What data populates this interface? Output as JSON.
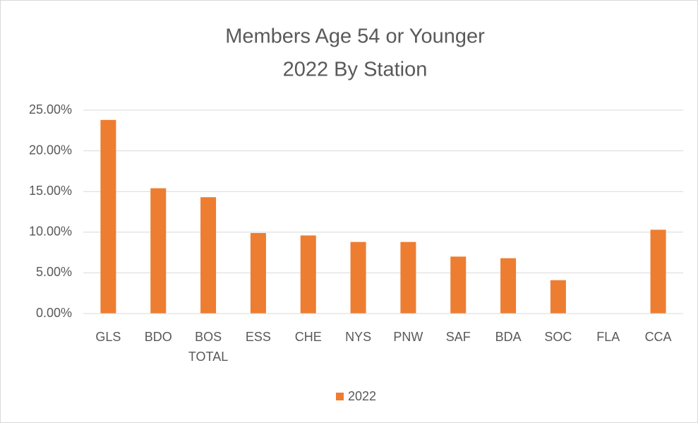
{
  "chart_data": {
    "type": "bar",
    "title": "Members Age 54 or Younger",
    "subtitle": "2022 By Station",
    "categories": [
      "GLS",
      "BDO",
      "BOS TOTAL",
      "ESS",
      "CHE",
      "NYS",
      "PNW",
      "SAF",
      "BDA",
      "SOC",
      "FLA",
      "CCA"
    ],
    "series": [
      {
        "name": "2022",
        "color": "#ED7D31",
        "values": [
          23.8,
          15.4,
          14.3,
          9.9,
          9.6,
          8.8,
          8.8,
          7.0,
          6.8,
          4.1,
          0,
          10.3
        ]
      }
    ],
    "ylim": [
      0,
      25
    ],
    "yticks": [
      {
        "value": 0,
        "label": "0.00%"
      },
      {
        "value": 5,
        "label": "5.00%"
      },
      {
        "value": 10,
        "label": "10.00%"
      },
      {
        "value": 15,
        "label": "15.00%"
      },
      {
        "value": 20,
        "label": "20.00%"
      },
      {
        "value": 25,
        "label": "25.00%"
      }
    ],
    "grid": true,
    "legend": "bottom"
  }
}
